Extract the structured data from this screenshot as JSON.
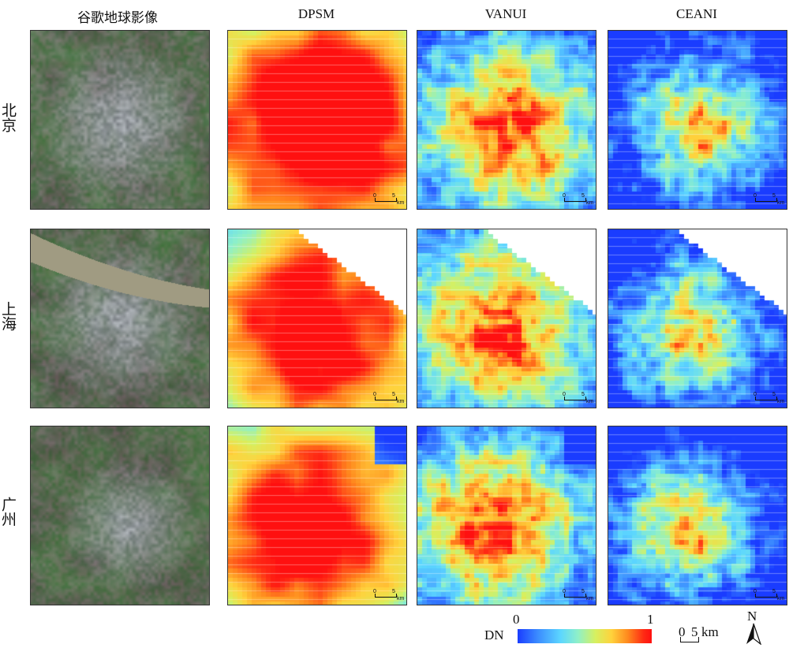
{
  "columns": [
    "谷歌地球影像",
    "DPSM",
    "VANUI",
    "CEANI"
  ],
  "rows": [
    "北京",
    "上海",
    "广州"
  ],
  "panel_scale": {
    "zero": "0",
    "five": "5",
    "unit": "km"
  },
  "legend": {
    "label": "DN",
    "min": "0",
    "max": "1",
    "colors": [
      "#1a3cff",
      "#5cd6ff",
      "#d6f060",
      "#ffd23c",
      "#ff2a14"
    ]
  },
  "scale_bar": {
    "zero": "0",
    "value": "5",
    "unit": "km"
  },
  "north": {
    "label": "N"
  }
}
